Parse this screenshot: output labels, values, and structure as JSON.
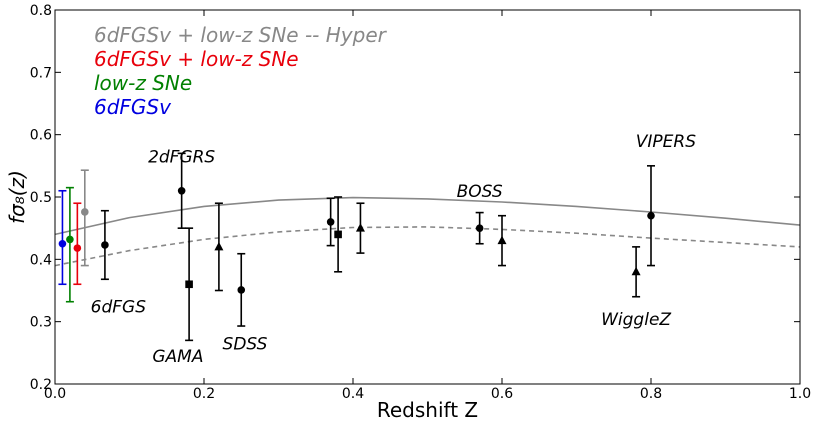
{
  "chart_data": {
    "type": "scatter",
    "xlabel": "Redshift Z",
    "ylabel": "fσ₈(z)",
    "xlim": [
      0.0,
      1.0
    ],
    "ylim": [
      0.2,
      0.8
    ],
    "xticks": [
      "0.0",
      "0.2",
      "0.4",
      "0.6",
      "0.8",
      "1.0"
    ],
    "yticks": [
      "0.2",
      "0.3",
      "0.4",
      "0.5",
      "0.6",
      "0.7",
      "0.8"
    ],
    "legend": [
      {
        "label": "6dFGSv + low-z SNe -- Hyper",
        "color": "#888888"
      },
      {
        "label": "6dFGSv + low-z SNe",
        "color": "#e8000b"
      },
      {
        "label": "low-z SNe",
        "color": "#008000"
      },
      {
        "label": "6dFGSv",
        "color": "#0000e0"
      }
    ],
    "colored_points": [
      {
        "name": "6dFGSv",
        "x": 0.01,
        "y": 0.425,
        "yerr": [
          0.065,
          0.085
        ],
        "color": "#0000e0"
      },
      {
        "name": "low-z SNe",
        "x": 0.02,
        "y": 0.432,
        "yerr": [
          0.1,
          0.083
        ],
        "color": "#008000"
      },
      {
        "name": "6dFGSv + low-z SNe",
        "x": 0.03,
        "y": 0.418,
        "yerr": [
          0.058,
          0.072
        ],
        "color": "#e8000b"
      },
      {
        "name": "6dFGSv + low-z SNe -- Hyper",
        "x": 0.04,
        "y": 0.476,
        "yerr": [
          0.086,
          0.067
        ],
        "color": "#888888"
      }
    ],
    "series": [
      {
        "name": "6dFGS",
        "marker": "circle",
        "x": 0.067,
        "y": 0.423,
        "yerr": [
          0.055,
          0.055
        ]
      },
      {
        "name": "2dFGRS",
        "marker": "circle",
        "x": 0.17,
        "y": 0.51,
        "yerr": [
          0.06,
          0.06
        ]
      },
      {
        "name": "GAMA",
        "marker": "square",
        "x": 0.18,
        "y": 0.36,
        "yerr": [
          0.09,
          0.09
        ]
      },
      {
        "name": "GAMA",
        "marker": "triangle",
        "x": 0.22,
        "y": 0.42,
        "yerr": [
          0.07,
          0.07
        ]
      },
      {
        "name": "SDSS",
        "marker": "circle",
        "x": 0.25,
        "y": 0.351,
        "yerr": [
          0.058,
          0.058
        ]
      },
      {
        "name": "BOSS",
        "marker": "circle",
        "x": 0.37,
        "y": 0.46,
        "yerr": [
          0.038,
          0.038
        ]
      },
      {
        "name": "BOSS",
        "marker": "square",
        "x": 0.38,
        "y": 0.44,
        "yerr": [
          0.06,
          0.06
        ]
      },
      {
        "name": "WiggleZ",
        "marker": "triangle",
        "x": 0.41,
        "y": 0.45,
        "yerr": [
          0.04,
          0.04
        ]
      },
      {
        "name": "BOSS",
        "marker": "circle",
        "x": 0.57,
        "y": 0.45,
        "yerr": [
          0.025,
          0.025
        ]
      },
      {
        "name": "WiggleZ",
        "marker": "triangle",
        "x": 0.6,
        "y": 0.43,
        "yerr": [
          0.04,
          0.04
        ]
      },
      {
        "name": "WiggleZ",
        "marker": "triangle",
        "x": 0.78,
        "y": 0.38,
        "yerr": [
          0.04,
          0.04
        ]
      },
      {
        "name": "VIPERS",
        "marker": "circle",
        "x": 0.8,
        "y": 0.47,
        "yerr": [
          0.08,
          0.08
        ]
      }
    ],
    "curves": [
      {
        "name": "solid model",
        "style": "solid",
        "color": "#888888",
        "x": [
          0.0,
          0.1,
          0.2,
          0.3,
          0.4,
          0.5,
          0.6,
          0.7,
          0.8,
          0.9,
          1.0
        ],
        "y": [
          0.44,
          0.467,
          0.485,
          0.495,
          0.499,
          0.497,
          0.492,
          0.485,
          0.476,
          0.466,
          0.455
        ]
      },
      {
        "name": "dashed model",
        "style": "dashed",
        "color": "#888888",
        "x": [
          0.0,
          0.1,
          0.2,
          0.3,
          0.4,
          0.5,
          0.6,
          0.7,
          0.8,
          0.9,
          1.0
        ],
        "y": [
          0.39,
          0.414,
          0.432,
          0.444,
          0.451,
          0.452,
          0.448,
          0.442,
          0.434,
          0.427,
          0.42
        ]
      }
    ],
    "annotations": [
      {
        "text": "2dFGRS",
        "x": 0.17,
        "y": 0.555
      },
      {
        "text": "6dFGS",
        "x": 0.085,
        "y": 0.315
      },
      {
        "text": "GAMA",
        "x": 0.165,
        "y": 0.235
      },
      {
        "text": "SDSS",
        "x": 0.255,
        "y": 0.255
      },
      {
        "text": "BOSS",
        "x": 0.57,
        "y": 0.5
      },
      {
        "text": "VIPERS",
        "x": 0.82,
        "y": 0.58
      },
      {
        "text": "WiggleZ",
        "x": 0.78,
        "y": 0.295
      }
    ]
  }
}
